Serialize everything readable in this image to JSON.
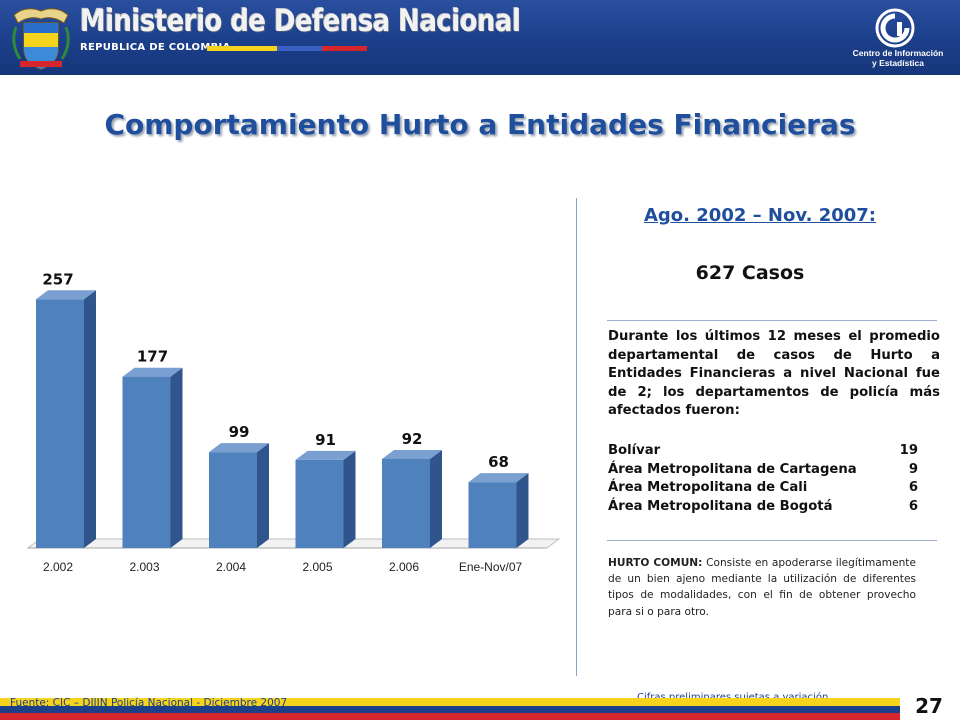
{
  "header": {
    "title": "Ministerio de Defensa Nacional",
    "subtitle": "REPUBLICA DE COLOMBIA",
    "logo_label_line1": "Centro de Información",
    "logo_label_line2": "y Estadística",
    "flag_colors": [
      "#f6d31c",
      "#1c3f8a",
      "#d7262b"
    ]
  },
  "page_title": "Comportamiento Hurto a Entidades Financieras",
  "chart_data": {
    "type": "bar",
    "categories": [
      "2.002",
      "2.003",
      "2.004",
      "2.005",
      "2.006",
      "Ene-Nov/07"
    ],
    "values": [
      257,
      177,
      99,
      91,
      92,
      68
    ],
    "value_labels": [
      "257",
      "177",
      "99",
      "91",
      "92",
      "68"
    ],
    "ylim": [
      0,
      280
    ],
    "grid": false,
    "legend": "none",
    "bar_color": "#4f81bd",
    "bar_side_color": "#30548c",
    "bar_top_color": "#7a9fd1"
  },
  "panel": {
    "period": "Ago. 2002 – Nov. 2007:",
    "total": "627 Casos",
    "summary": "Durante los últimos 12 meses el promedio departamental de casos de Hurto a Entidades Financieras  a nivel Nacional fue de 2; los departamentos de policía más afectados fueron:",
    "departments": [
      {
        "name": "Bolívar",
        "value": "19"
      },
      {
        "name": "Área Metropolitana de Cartagena",
        "value": "9"
      },
      {
        "name": "Área Metropolitana de Cali",
        "value": "6"
      },
      {
        "name": "Área Metropolitana de Bogotá",
        "value": "6"
      }
    ],
    "definition_label": "HURTO COMUN:",
    "definition_text": " Consiste en apoderarse ilegítimamente de un bien ajeno mediante la utilización de diferentes tipos de modalidades, con el fin de obtener provecho para si o para otro."
  },
  "footer": {
    "source": "Fuente: CIC – DIJIN Policía Nacional   - Diciembre 2007",
    "note": "Cifras preliminares sujetas a variación",
    "page_number": "27"
  }
}
